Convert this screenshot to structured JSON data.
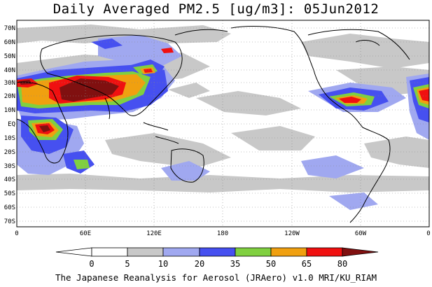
{
  "title": "Daily Averaged PM2.5 [ug/m3]: 05Jun2012",
  "credit": "The Japanese Reanalysis for Aerosol (JRAero) v1.0 MRI/KU_RIAM",
  "lat_labels": [
    "70N",
    "60N",
    "50N",
    "40N",
    "30N",
    "20N",
    "10N",
    "EQ",
    "10S",
    "20S",
    "30S",
    "40S",
    "50S",
    "60S",
    "70S"
  ],
  "lon_labels": [
    "0",
    "60E",
    "120E",
    "180",
    "120W",
    "60W",
    "0"
  ],
  "colorbar": {
    "labels": [
      "0",
      "5",
      "10",
      "20",
      "35",
      "50",
      "65",
      "80"
    ],
    "colors": [
      "#ffffff",
      "#c8c8c8",
      "#a0a8f0",
      "#4650f0",
      "#80d040",
      "#f0a010",
      "#f01010",
      "#801010"
    ]
  }
}
